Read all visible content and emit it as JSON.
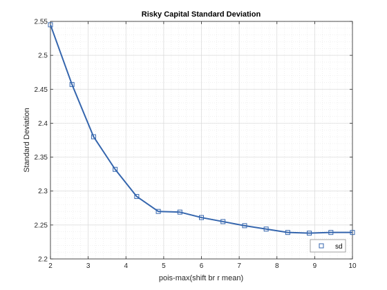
{
  "chart_data": {
    "type": "line",
    "title": "Risky Capital Standard Deviation",
    "xlabel": "pois-max(shift br r mean)",
    "ylabel": "Standard Deviation",
    "xlim": [
      2,
      10
    ],
    "ylim": [
      2.2,
      2.55
    ],
    "xticks": [
      "2",
      "3",
      "4",
      "5",
      "6",
      "7",
      "8",
      "9",
      "10"
    ],
    "yticks": [
      "2.2",
      "2.25",
      "2.3",
      "2.35",
      "2.4",
      "2.45",
      "2.5",
      "2.55"
    ],
    "grid": true,
    "minor_grid": true,
    "legend_position": "bottom-right",
    "series": [
      {
        "name": "sd",
        "color": "#3465ad",
        "marker": "square",
        "x": [
          2.0,
          2.571,
          3.143,
          3.714,
          4.286,
          4.857,
          5.429,
          6.0,
          6.571,
          7.143,
          7.714,
          8.286,
          8.857,
          9.429,
          10.0
        ],
        "y": [
          2.545,
          2.457,
          2.38,
          2.332,
          2.292,
          2.27,
          2.269,
          2.261,
          2.255,
          2.249,
          2.244,
          2.239,
          2.238,
          2.239,
          2.239
        ]
      }
    ]
  }
}
